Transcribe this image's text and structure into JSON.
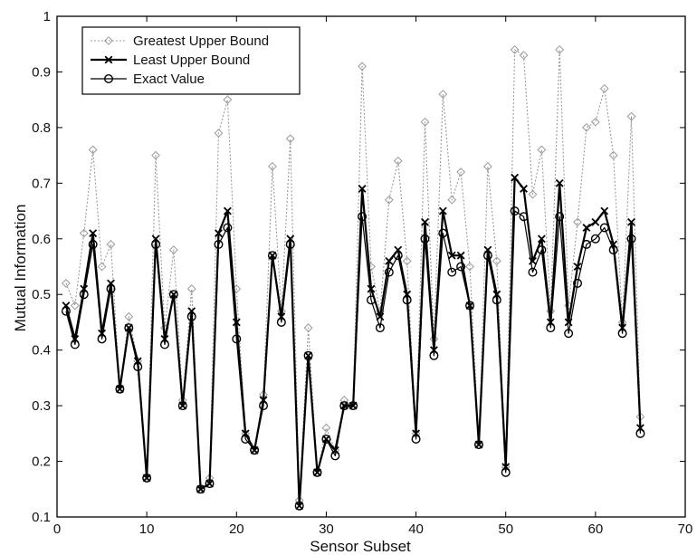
{
  "chart_data": {
    "type": "line",
    "title": "",
    "xlabel": "Sensor Subset",
    "ylabel": "Mutual Information",
    "xlim": [
      0,
      70
    ],
    "ylim": [
      0.1,
      1
    ],
    "xticks": [
      "0",
      "10",
      "20",
      "30",
      "40",
      "50",
      "60",
      "70"
    ],
    "yticks": [
      "0.1",
      "0.2",
      "0.3",
      "0.4",
      "0.5",
      "0.6",
      "0.7",
      "0.8",
      "0.9",
      "1"
    ],
    "grid": false,
    "legend_position": "top-left",
    "x": [
      1,
      2,
      3,
      4,
      5,
      6,
      7,
      8,
      9,
      10,
      11,
      12,
      13,
      14,
      15,
      16,
      17,
      18,
      19,
      20,
      21,
      22,
      23,
      24,
      25,
      26,
      27,
      28,
      29,
      30,
      31,
      32,
      33,
      34,
      35,
      36,
      37,
      38,
      39,
      40,
      41,
      42,
      43,
      44,
      45,
      46,
      47,
      48,
      49,
      50,
      51,
      52,
      53,
      54,
      55,
      56,
      57,
      58,
      59,
      60,
      61,
      62,
      63,
      64,
      65
    ],
    "series": [
      {
        "name": "Greatest Upper Bound",
        "color": "#9a9a9a",
        "marker": "diamond",
        "values": [
          0.52,
          0.48,
          0.61,
          0.76,
          0.55,
          0.59,
          0.33,
          0.46,
          0.38,
          0.17,
          0.75,
          0.44,
          0.58,
          0.31,
          0.51,
          0.15,
          0.17,
          0.79,
          0.85,
          0.51,
          0.25,
          0.22,
          0.32,
          0.73,
          0.47,
          0.78,
          0.13,
          0.44,
          0.18,
          0.26,
          0.22,
          0.31,
          0.3,
          0.91,
          0.55,
          0.47,
          0.67,
          0.74,
          0.56,
          0.25,
          0.81,
          0.42,
          0.86,
          0.67,
          0.72,
          0.55,
          0.23,
          0.73,
          0.56,
          0.19,
          0.94,
          0.93,
          0.68,
          0.76,
          0.47,
          0.94,
          0.48,
          0.63,
          0.8,
          0.81,
          0.87,
          0.75,
          0.45,
          0.82,
          0.28
        ]
      },
      {
        "name": "Least Upper Bound",
        "color": "#000000",
        "marker": "x",
        "values": [
          0.48,
          0.42,
          0.51,
          0.61,
          0.43,
          0.52,
          0.33,
          0.44,
          0.38,
          0.17,
          0.6,
          0.42,
          0.5,
          0.3,
          0.47,
          0.15,
          0.16,
          0.61,
          0.65,
          0.45,
          0.25,
          0.22,
          0.31,
          0.57,
          0.46,
          0.6,
          0.12,
          0.39,
          0.18,
          0.24,
          0.22,
          0.3,
          0.3,
          0.69,
          0.51,
          0.46,
          0.56,
          0.58,
          0.5,
          0.25,
          0.63,
          0.4,
          0.65,
          0.57,
          0.57,
          0.48,
          0.23,
          0.58,
          0.5,
          0.19,
          0.71,
          0.69,
          0.56,
          0.6,
          0.45,
          0.7,
          0.45,
          0.55,
          0.62,
          0.63,
          0.65,
          0.59,
          0.44,
          0.63,
          0.26
        ]
      },
      {
        "name": "Exact Value",
        "color": "#000000",
        "marker": "circle",
        "values": [
          0.47,
          0.41,
          0.5,
          0.59,
          0.42,
          0.51,
          0.33,
          0.44,
          0.37,
          0.17,
          0.59,
          0.41,
          0.5,
          0.3,
          0.46,
          0.15,
          0.16,
          0.59,
          0.62,
          0.42,
          0.24,
          0.22,
          0.3,
          0.57,
          0.45,
          0.59,
          0.12,
          0.39,
          0.18,
          0.24,
          0.21,
          0.3,
          0.3,
          0.64,
          0.49,
          0.44,
          0.54,
          0.57,
          0.49,
          0.24,
          0.6,
          0.39,
          0.61,
          0.54,
          0.55,
          0.48,
          0.23,
          0.57,
          0.49,
          0.18,
          0.65,
          0.64,
          0.54,
          0.58,
          0.44,
          0.64,
          0.43,
          0.52,
          0.59,
          0.6,
          0.62,
          0.58,
          0.43,
          0.6,
          0.25
        ]
      }
    ]
  }
}
